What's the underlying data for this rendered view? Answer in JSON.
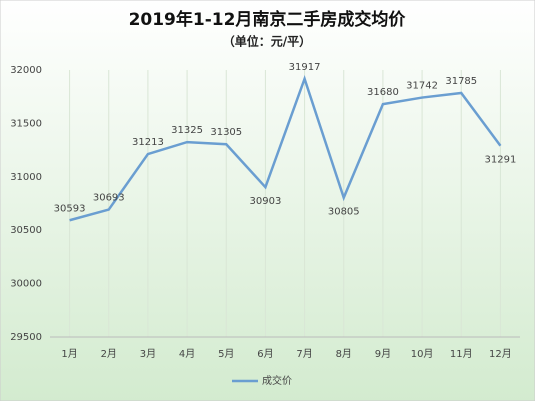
{
  "chart_data": {
    "type": "line",
    "title": "2019年1-12月南京二手房成交均价",
    "subtitle": "（单位：元/平）",
    "categories": [
      "1月",
      "2月",
      "3月",
      "4月",
      "5月",
      "6月",
      "7月",
      "8月",
      "9月",
      "10月",
      "11月",
      "12月"
    ],
    "series": [
      {
        "name": "成交价",
        "color": "#6a9ed1",
        "values": [
          30593,
          30693,
          31213,
          31325,
          31305,
          30903,
          31917,
          30805,
          31680,
          31742,
          31785,
          31291
        ]
      }
    ],
    "ylim": [
      29500,
      32000
    ],
    "yticks": [
      29500,
      30000,
      30500,
      31000,
      31500,
      32000
    ],
    "grid": true,
    "legend": "bottom"
  }
}
